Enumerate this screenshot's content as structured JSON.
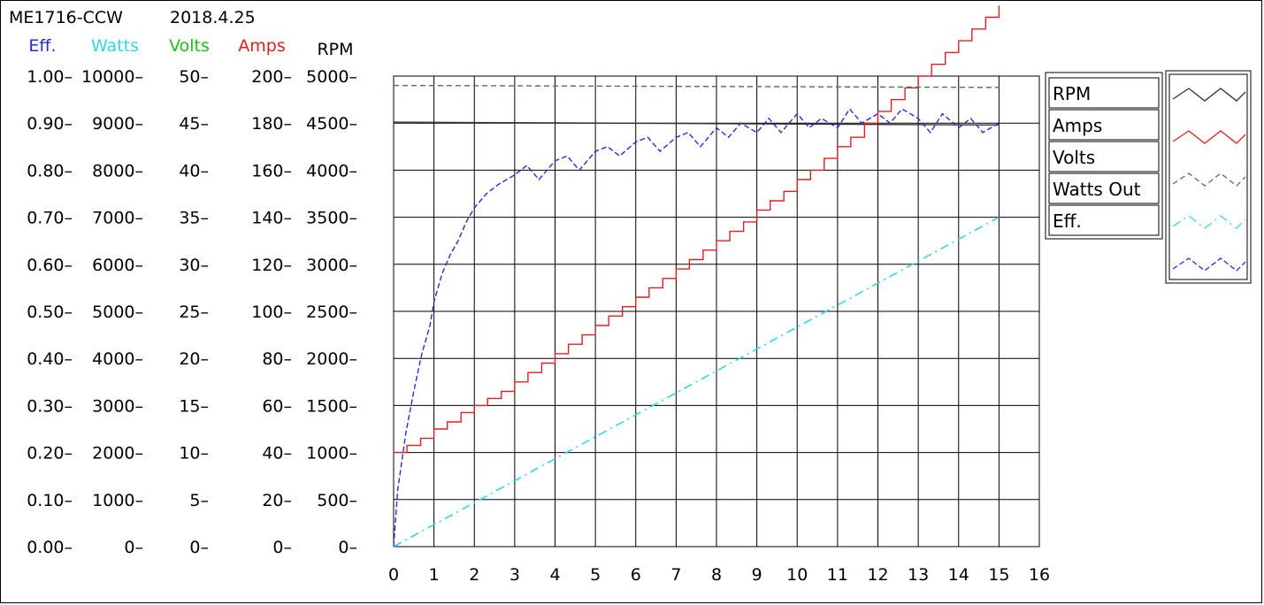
{
  "header": {
    "model": "ME1716-CCW",
    "date": "2018.4.25"
  },
  "colors": {
    "eff": "#2b2bd0",
    "watts": "#33d6e8",
    "volts": "#18c418",
    "amps": "#e02020",
    "rpm": "#000000",
    "volts_line": "#4a7a4a",
    "rpm_line": "#333333"
  },
  "chart_data": {
    "type": "line",
    "x_axis": {
      "min": 0,
      "max": 16,
      "ticks": [
        "0",
        "1",
        "2",
        "3",
        "4",
        "5",
        "6",
        "7",
        "8",
        "9",
        "10",
        "11",
        "12",
        "13",
        "14",
        "15",
        "16"
      ]
    },
    "y_axes": [
      {
        "name": "Eff.",
        "min": 0,
        "max": 1,
        "ticks": [
          "0.00",
          "0.10",
          "0.20",
          "0.30",
          "0.40",
          "0.50",
          "0.60",
          "0.70",
          "0.80",
          "0.90",
          "1.00"
        ]
      },
      {
        "name": "Watts",
        "min": 0,
        "max": 10000,
        "ticks": [
          "0",
          "1000",
          "2000",
          "3000",
          "4000",
          "5000",
          "6000",
          "7000",
          "8000",
          "9000",
          "10000"
        ]
      },
      {
        "name": "Volts",
        "min": 0,
        "max": 50,
        "ticks": [
          "0",
          "5",
          "10",
          "15",
          "20",
          "25",
          "30",
          "35",
          "40",
          "45",
          "50"
        ]
      },
      {
        "name": "Amps",
        "min": 0,
        "max": 200,
        "ticks": [
          "0",
          "20",
          "40",
          "60",
          "80",
          "100",
          "120",
          "140",
          "160",
          "180",
          "200"
        ]
      },
      {
        "name": "RPM",
        "min": 0,
        "max": 5000,
        "ticks": [
          "0",
          "500",
          "1000",
          "1500",
          "2000",
          "2500",
          "3000",
          "3500",
          "4000",
          "4500",
          "5000"
        ]
      }
    ],
    "grid": true,
    "legend": {
      "placement": "right",
      "entries": [
        "RPM",
        "Amps",
        "Volts",
        "Watts Out",
        "Eff."
      ]
    },
    "series": [
      {
        "name": "RPM",
        "axis": "RPM",
        "x": [
          0,
          15
        ],
        "y": [
          4510,
          4480
        ]
      },
      {
        "name": "Amps",
        "axis": "Amps",
        "step": true,
        "x": [
          0.0,
          0.33,
          0.67,
          1.0,
          1.33,
          1.67,
          2.0,
          2.33,
          2.67,
          3.0,
          3.33,
          3.67,
          4.0,
          4.33,
          4.67,
          5.0,
          5.33,
          5.67,
          6.0,
          6.33,
          6.67,
          7.0,
          7.33,
          7.67,
          8.0,
          8.33,
          8.67,
          9.0,
          9.33,
          9.67,
          10.0,
          10.33,
          10.67,
          11.0,
          11.33,
          11.67,
          12.0,
          12.33,
          12.67,
          13.0,
          13.33,
          13.67,
          14.0,
          14.33,
          14.67,
          15.0
        ],
        "y": [
          40,
          43,
          46,
          50,
          53,
          57,
          60,
          63,
          66,
          70,
          74,
          78,
          82,
          86,
          90,
          94,
          98,
          102,
          106,
          110,
          114,
          118,
          122,
          126,
          130,
          134,
          138,
          143,
          147,
          151,
          156,
          160,
          165,
          170,
          174,
          180,
          185,
          190,
          195,
          200,
          205,
          210,
          215,
          220,
          225,
          230
        ]
      },
      {
        "name": "Volts",
        "axis": "Volts",
        "x": [
          0,
          15
        ],
        "y": [
          49.0,
          48.8
        ]
      },
      {
        "name": "Watts Out",
        "axis": "Watts",
        "x": [
          0,
          15
        ],
        "y": [
          0,
          7000
        ]
      },
      {
        "name": "Eff.",
        "axis": "Eff.",
        "x": [
          0,
          0.1,
          0.3,
          0.5,
          0.7,
          0.9,
          1.0,
          1.2,
          1.4,
          1.6,
          1.8,
          2.0,
          2.3,
          2.6,
          3.0,
          3.3,
          3.6,
          4.0,
          4.3,
          4.6,
          5.0,
          5.3,
          5.6,
          6.0,
          6.3,
          6.6,
          7.0,
          7.3,
          7.6,
          8.0,
          8.3,
          8.6,
          9.0,
          9.3,
          9.6,
          10.0,
          10.3,
          10.6,
          11.0,
          11.3,
          11.6,
          12.0,
          12.3,
          12.6,
          13.0,
          13.3,
          13.6,
          14.0,
          14.3,
          14.6,
          15.0
        ],
        "y": [
          0.0,
          0.12,
          0.24,
          0.33,
          0.41,
          0.47,
          0.52,
          0.58,
          0.62,
          0.65,
          0.69,
          0.72,
          0.75,
          0.77,
          0.79,
          0.81,
          0.78,
          0.82,
          0.83,
          0.8,
          0.84,
          0.85,
          0.83,
          0.86,
          0.87,
          0.84,
          0.87,
          0.88,
          0.85,
          0.89,
          0.87,
          0.9,
          0.88,
          0.91,
          0.88,
          0.92,
          0.89,
          0.91,
          0.89,
          0.93,
          0.9,
          0.92,
          0.9,
          0.93,
          0.91,
          0.88,
          0.92,
          0.89,
          0.91,
          0.88,
          0.9
        ]
      }
    ]
  }
}
